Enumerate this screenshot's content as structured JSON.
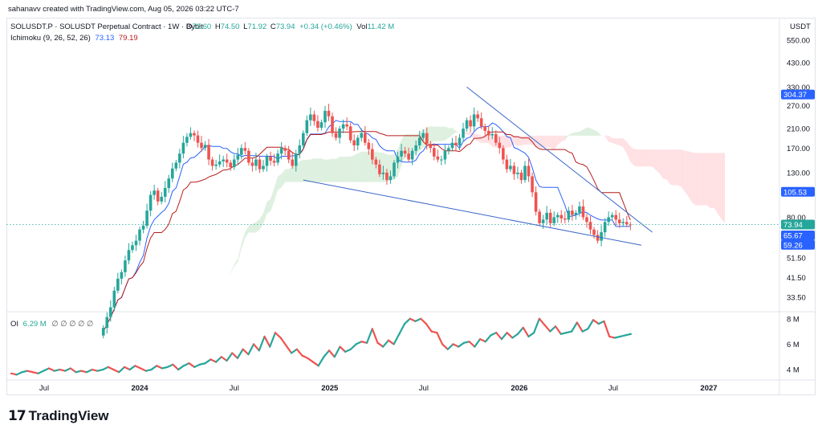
{
  "credit": "sahanavv created with TradingView.com, Aug 05, 2026 03:22 UTC-7",
  "brand": {
    "logo_text": "TradingView",
    "logo_mark": "17"
  },
  "legend": {
    "symbol": "SOLUSDT.P · SOLUSDT Perpetual Contract · 1W · Bybit",
    "o_label": "O",
    "o_value": "73.60",
    "h_label": "H",
    "h_value": "74.50",
    "l_label": "L",
    "l_value": "71.92",
    "c_label": "C",
    "c_value": "73.94",
    "change": "+0.34 (+0.46%)",
    "vol_label": "Vol",
    "vol_value": "11.42 M",
    "ichimoku_label": "Ichimoku (9, 26, 52, 26)",
    "ichimoku_v1": "73.13",
    "ichimoku_v2": "79.19",
    "oi_label": "OI",
    "oi_value": "6.29 M",
    "oi_placeholders": "∅ ∅ ∅ ∅ ∅"
  },
  "colors": {
    "up": "#26a69a",
    "down": "#ef5350",
    "conversion": "#2962ff",
    "base": "#b71c1c",
    "trendline": "#3a66c8",
    "cloud_bull": "#c8e6c9",
    "cloud_bear": "#ffcdd2",
    "price_line": "#26a69a"
  },
  "chart_data": [
    {
      "type": "candlestick",
      "scale": "log",
      "currency": "USDT",
      "price_ticks": [
        "550.00",
        "430.00",
        "330.00",
        "270.00",
        "210.00",
        "170.00",
        "130.00",
        "80.00",
        "51.50",
        "41.50",
        "33.50"
      ],
      "price_badges": [
        {
          "label": "304.37",
          "color": "#2962ff"
        },
        {
          "label": "105.53",
          "color": "#2962ff"
        },
        {
          "label": "73.94",
          "color": "#26a69a"
        },
        {
          "label": "65.67",
          "color": "#2962ff"
        },
        {
          "label": "59.26",
          "color": "#2962ff"
        }
      ],
      "x_ticks": [
        "Jul",
        "2024",
        "Jul",
        "2025",
        "Jul",
        "2026",
        "Jul",
        "2027"
      ],
      "x_tick_dates": [
        "2023-07-01",
        "2024-01-01",
        "2024-07-01",
        "2025-01-01",
        "2025-07-01",
        "2026-01-01",
        "2026-07-01",
        "2027-01-01"
      ],
      "bold_ticks": [
        "2024",
        "2025",
        "2026",
        "2027"
      ],
      "candles_close": [
        24,
        27,
        30,
        36,
        41,
        44,
        50,
        56,
        59,
        62,
        70,
        73,
        86,
        102,
        107,
        95,
        100,
        110,
        122,
        136,
        145,
        160,
        180,
        192,
        200,
        195,
        180,
        170,
        176,
        150,
        140,
        142,
        147,
        150,
        145,
        138,
        150,
        158,
        170,
        165,
        145,
        140,
        150,
        135,
        140,
        155,
        148,
        145,
        160,
        170,
        165,
        150,
        140,
        160,
        175,
        200,
        230,
        245,
        228,
        212,
        225,
        255,
        240,
        200,
        190,
        210,
        220,
        215,
        185,
        175,
        190,
        200,
        180,
        168,
        150,
        142,
        128,
        130,
        120,
        125,
        145,
        155,
        165,
        160,
        150,
        165,
        175,
        190,
        200,
        178,
        170,
        155,
        150,
        150,
        165,
        170,
        180,
        175,
        190,
        210,
        230,
        215,
        245,
        235,
        215,
        205,
        195,
        198,
        180,
        170,
        150,
        135,
        140,
        128,
        130,
        120,
        140,
        125,
        105,
        85,
        75,
        78,
        84,
        75,
        80,
        82,
        79,
        78,
        86,
        82,
        84,
        90,
        80,
        76,
        70,
        66,
        62,
        68,
        76,
        80,
        82,
        78,
        75,
        76,
        74,
        73.94
      ]
    },
    {
      "type": "line",
      "name": "OI",
      "y_ticks": [
        "8 M",
        "6 M",
        "4 M"
      ],
      "values": [
        3.7,
        3.6,
        3.8,
        3.9,
        3.8,
        3.7,
        3.9,
        4.1,
        3.9,
        4.0,
        3.9,
        4.1,
        3.8,
        3.9,
        3.8,
        4.0,
        3.9,
        4.0,
        4.2,
        4.0,
        3.8,
        4.2,
        4.0,
        4.3,
        4.1,
        3.9,
        4.0,
        4.3,
        4.1,
        4.2,
        4.4,
        4.0,
        4.3,
        4.5,
        4.2,
        4.4,
        4.5,
        4.8,
        4.6,
        5.0,
        4.7,
        5.3,
        4.9,
        5.6,
        5.2,
        6.0,
        5.5,
        6.6,
        5.8,
        6.9,
        6.5,
        5.9,
        5.3,
        5.6,
        5.1,
        4.9,
        4.6,
        4.3,
        5.0,
        5.5,
        5.0,
        5.8,
        5.4,
        5.6,
        6.0,
        6.2,
        6.1,
        7.2,
        6.1,
        5.8,
        6.3,
        6.0,
        6.8,
        7.6,
        8.0,
        7.8,
        8.0,
        7.6,
        7.0,
        6.9,
        6.0,
        5.6,
        6.0,
        5.8,
        6.1,
        6.2,
        5.8,
        6.4,
        6.2,
        6.7,
        6.9,
        6.4,
        6.9,
        6.5,
        6.8,
        7.3,
        6.6,
        6.9,
        8.0,
        7.5,
        7.0,
        7.4,
        6.8,
        6.9,
        7.0,
        7.7,
        7.0,
        7.2,
        7.9,
        7.6,
        7.8,
        6.6,
        6.5,
        6.6,
        6.7,
        6.8
      ],
      "ylim": [
        3.5,
        8.3
      ]
    }
  ]
}
